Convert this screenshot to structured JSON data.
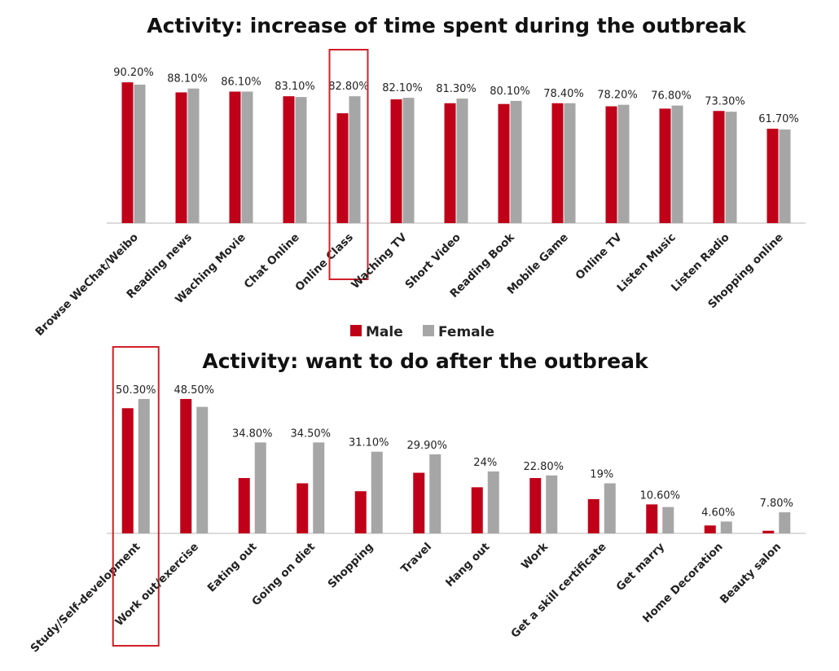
{
  "colors": {
    "male": "#c00018",
    "female": "#a6a6a6",
    "highlight": "#d0202a",
    "axis": "#cfcfcf"
  },
  "legend": {
    "male_label": "Male",
    "female_label": "Female"
  },
  "chart_data": [
    {
      "type": "bar",
      "title": "Activity: increase of time spent during the outbreak",
      "categories": [
        "Browse WeChat/Weibo",
        "Reading news",
        "Waching Movie",
        "Chat Online",
        "Online Class",
        "Waching TV",
        "Short Video",
        "Reading Book",
        "Mobile Game",
        "Online TV",
        "Listen Music",
        "Listen Radio",
        "Shopping online"
      ],
      "data_labels": [
        "90.20%",
        "88.10%",
        "86.10%",
        "83.10%",
        "82.80%",
        "82.10%",
        "81.30%",
        "80.10%",
        "78.40%",
        "78.20%",
        "76.80%",
        "73.30%",
        "61.70%"
      ],
      "series": [
        {
          "name": "Male",
          "values": [
            91.0,
            84.5,
            85.0,
            82.0,
            71.0,
            80.0,
            77.5,
            77.0,
            77.5,
            75.5,
            74.0,
            72.5,
            61.0
          ]
        },
        {
          "name": "Female",
          "values": [
            89.5,
            87.0,
            85.0,
            81.5,
            82.0,
            81.0,
            80.5,
            79.0,
            77.5,
            76.5,
            76.0,
            72.0,
            60.5
          ]
        }
      ],
      "highlight_category": "Online Class",
      "ylim": [
        0,
        100
      ],
      "xlabel": "",
      "ylabel": ""
    },
    {
      "type": "bar",
      "title": "Activity: want to do after the outbreak",
      "categories": [
        "Study/Self-development",
        "Work out/exercise",
        "Eating out",
        "Going on diet",
        "Shopping",
        "Travel",
        "Hang out",
        "Work",
        "Get a skill certificate",
        "Get marry",
        "Home Decoration",
        "Beauty salon"
      ],
      "data_labels": [
        "50.30%",
        "48.50%",
        "34.80%",
        "34.50%",
        "31.10%",
        "29.90%",
        "24%",
        "22.80%",
        "19%",
        "10.60%",
        "4.60%",
        "7.80%"
      ],
      "series": [
        {
          "name": "Male",
          "values": [
            47.5,
            51.0,
            21.0,
            19.0,
            16.0,
            23.0,
            17.5,
            21.0,
            13.0,
            11.0,
            3.0,
            1.0
          ]
        },
        {
          "name": "Female",
          "values": [
            51.0,
            48.0,
            34.5,
            34.5,
            31.0,
            30.0,
            23.5,
            22.0,
            19.0,
            10.0,
            4.5,
            8.0
          ]
        }
      ],
      "highlight_category": "Study/Self-development",
      "ylim": [
        0,
        55
      ],
      "xlabel": "",
      "ylabel": ""
    }
  ]
}
